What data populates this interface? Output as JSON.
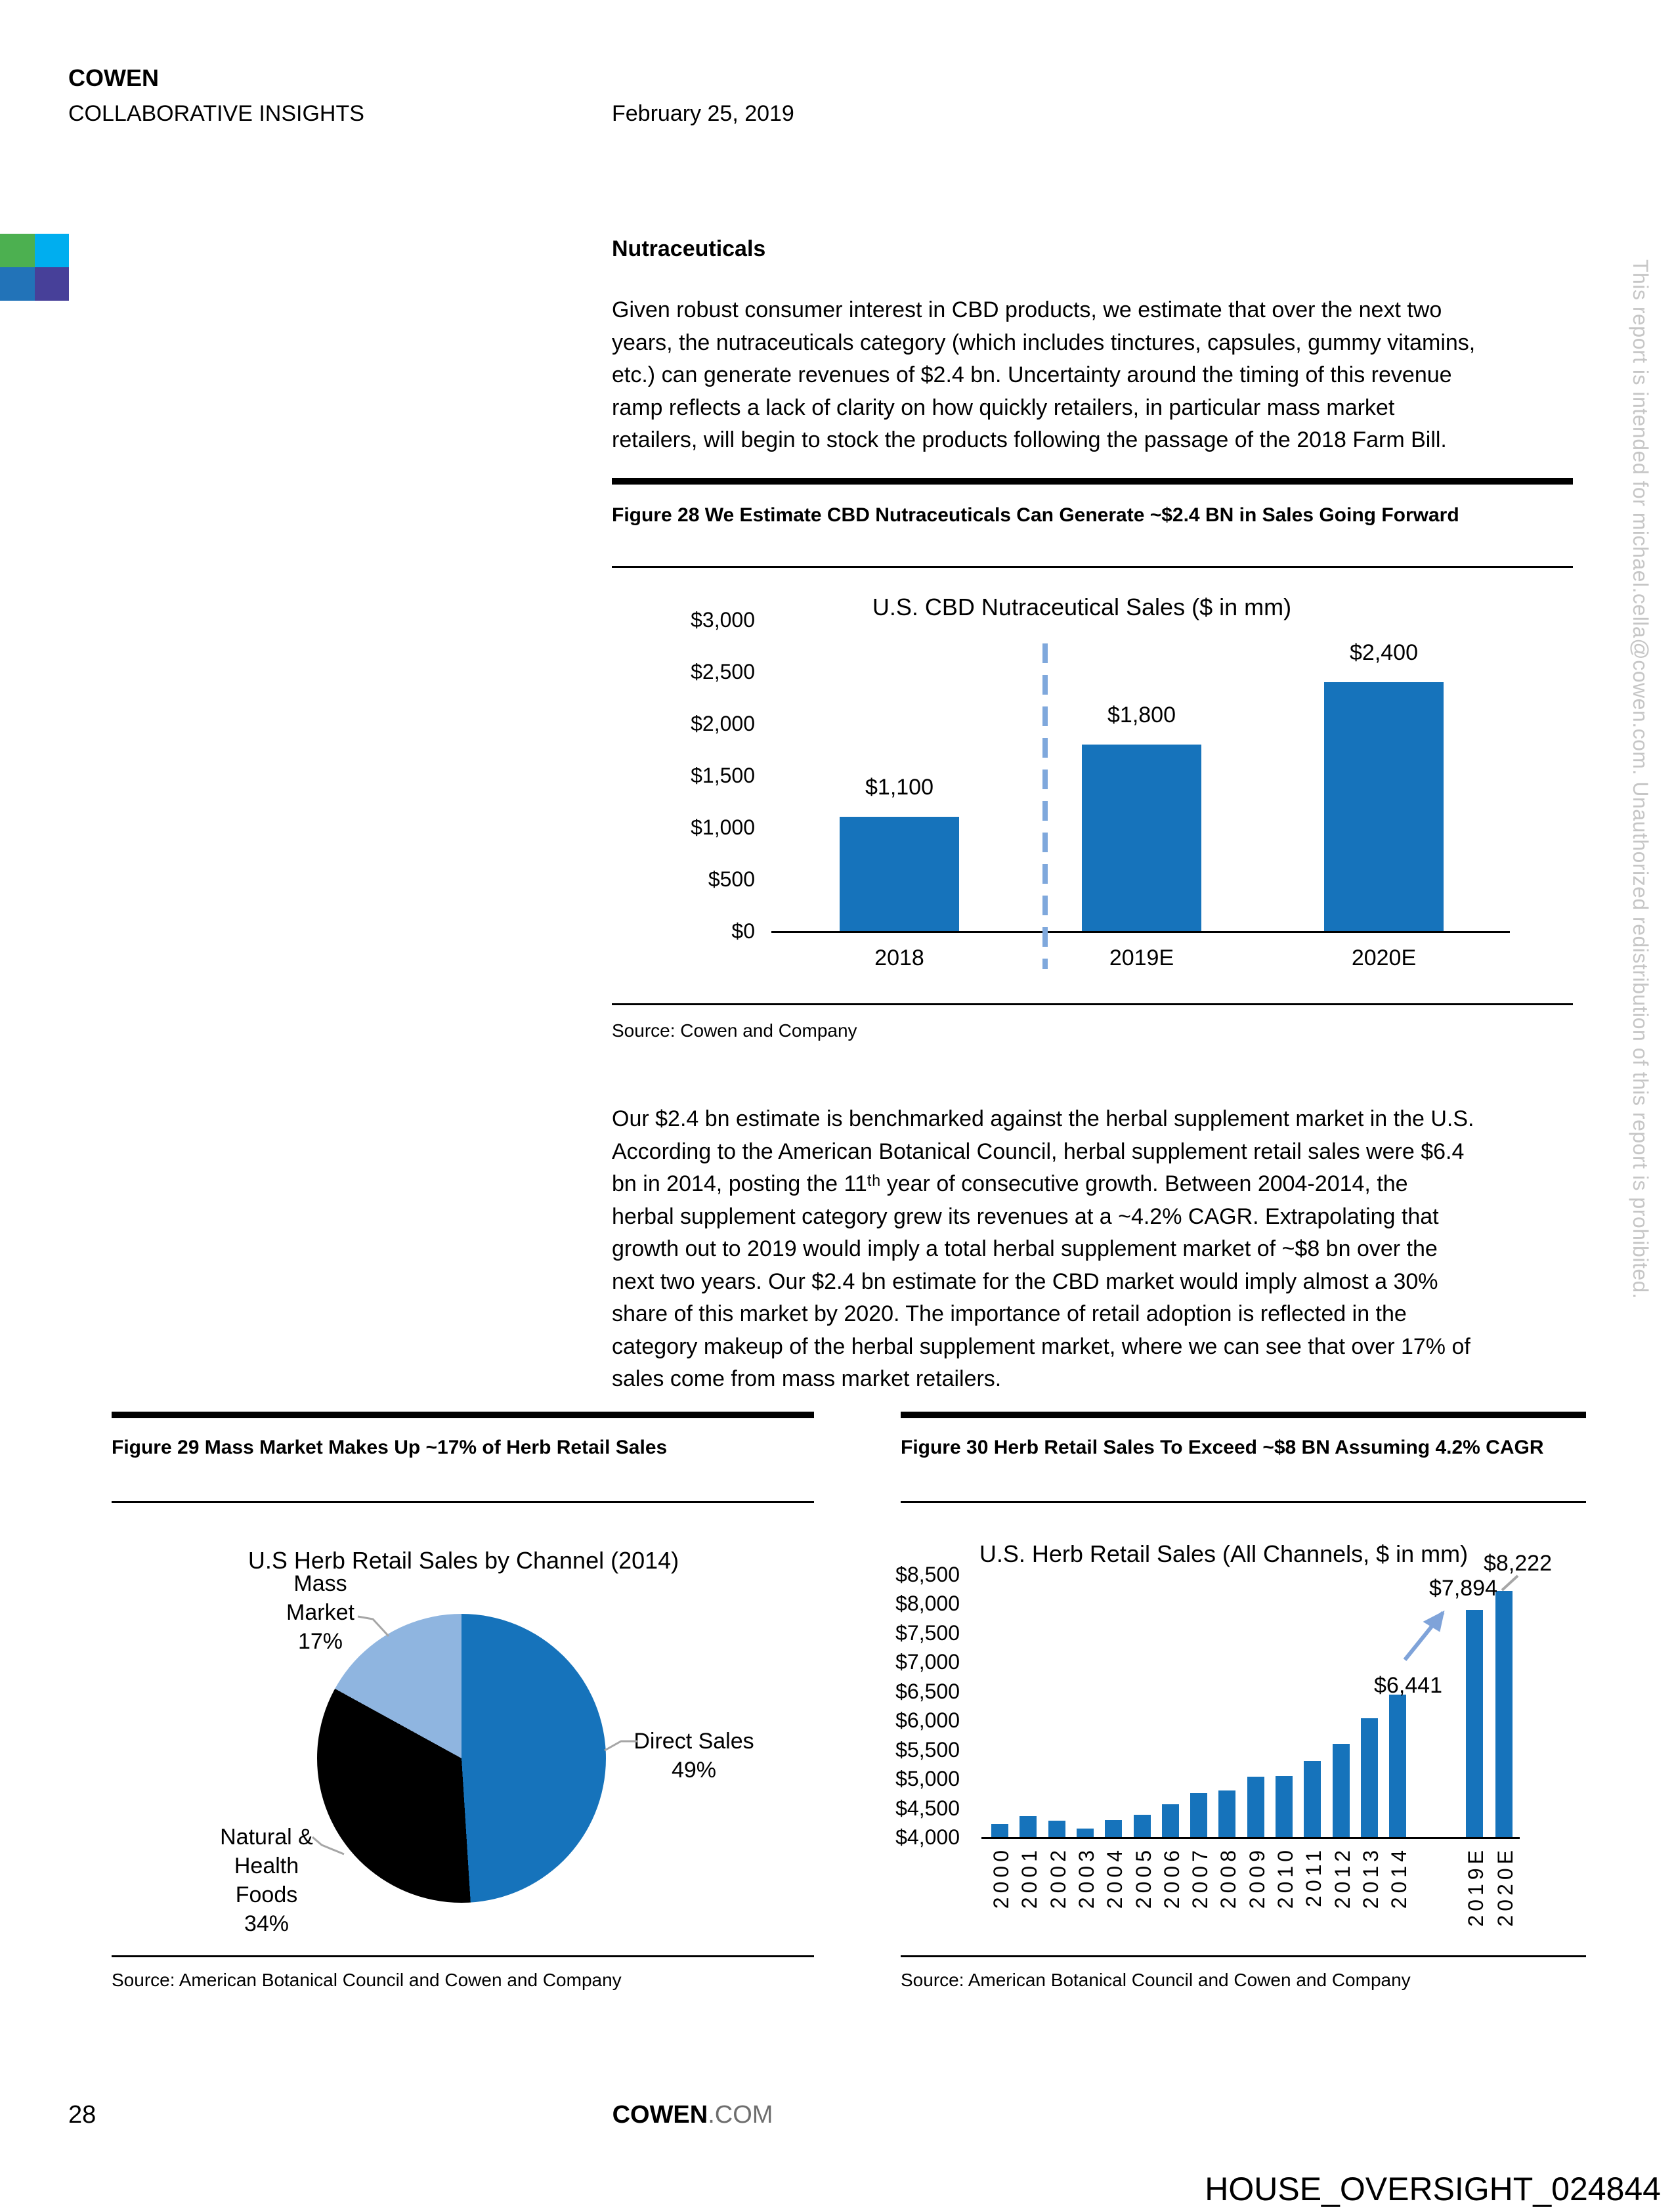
{
  "header": {
    "brand": "COWEN",
    "subbrand": "COLLABORATIVE INSIGHTS",
    "date": "February 25, 2019"
  },
  "logo_colors": {
    "green": "#4CB050",
    "cyan": "#00AEEF",
    "blue": "#2273B8",
    "purple": "#474099"
  },
  "section_title": "Nutraceuticals",
  "para1_lines": [
    "Given robust consumer interest in CBD products, we estimate that over the next two",
    "years, the nutraceuticals category (which includes tinctures, capsules, gummy vitamins,",
    "etc.) can generate revenues of $2.4 bn. Uncertainty around the timing of this revenue",
    "ramp reflects a lack of clarity on how quickly retailers, in particular mass market",
    "retailers, will begin to stock the products following the passage of the 2018 Farm Bill."
  ],
  "figure28": {
    "caption": "Figure 28 We Estimate CBD Nutraceuticals Can Generate ~$2.4 BN in Sales Going Forward",
    "source": "Source: Cowen and Company"
  },
  "para2_lines": [
    "Our $2.4 bn estimate is benchmarked against the herbal supplement market in the U.S.",
    "According to the American Botanical Council, herbal supplement retail sales were $6.4",
    "bn in 2014, posting the 11ᵗʰ year of consecutive growth. Between 2004-2014, the",
    "herbal supplement category grew its revenues at a ~4.2% CAGR. Extrapolating that",
    "growth out to 2019 would imply a total herbal supplement market of ~$8 bn over the",
    "next two years. Our $2.4 bn estimate for the CBD market would imply almost a 30%",
    "share of this market by 2020. The importance of retail adoption is reflected in the",
    "category makeup of the herbal supplement market, where we can see that over 17% of",
    "sales come from mass market retailers."
  ],
  "figure29": {
    "caption": "Figure 29 Mass Market Makes Up ~17% of Herb Retail Sales",
    "source": "Source: American Botanical Council and Cowen and Company"
  },
  "figure30": {
    "caption": "Figure 30 Herb Retail Sales To Exceed ~$8 BN Assuming 4.2% CAGR",
    "source": "Source: American Botanical Council and Cowen and Company"
  },
  "chart_data": [
    {
      "type": "bar",
      "title": "U.S. CBD Nutraceutical Sales ($ in mm)",
      "categories": [
        "2018",
        "2019E",
        "2020E"
      ],
      "values": [
        1100,
        1800,
        2400
      ],
      "data_labels": [
        "$1,100",
        "$1,800",
        "$2,400"
      ],
      "ylim": [
        0,
        3000
      ],
      "ytick_labels": [
        "$3,000",
        "$2,500",
        "$2,000",
        "$1,500",
        "$1,000",
        "$500",
        "$0"
      ],
      "bar_color": "#1673BB",
      "divider_note": "dashed vertical line separates actual 2018 from estimates",
      "divider_color": "#7FA8DC"
    },
    {
      "type": "pie",
      "title": "U.S Herb Retail Sales by Channel (2014)",
      "slices": [
        {
          "label": "Direct Sales",
          "pct": 49,
          "color": "#1673BB",
          "label_lines": [
            "Direct Sales",
            "49%"
          ]
        },
        {
          "label": "Natural & Health Foods",
          "pct": 34,
          "color": "#000000",
          "label_lines": [
            "Natural &",
            "Health",
            "Foods",
            "34%"
          ]
        },
        {
          "label": "Mass Market",
          "pct": 17,
          "color": "#8FB5E0",
          "label_lines": [
            "Mass",
            "Market",
            "17%"
          ]
        }
      ],
      "legend_position": "outside labels with leader lines"
    },
    {
      "type": "bar",
      "title": "U.S. Herb Retail Sales (All Channels, $ in mm)",
      "categories": [
        "2000",
        "2001",
        "2002",
        "2003",
        "2004",
        "2005",
        "2006",
        "2007",
        "2008",
        "2009",
        "2010",
        "2011",
        "2012",
        "2013",
        "2014",
        "2019E",
        "2020E"
      ],
      "values": [
        4225,
        4361,
        4276,
        4146,
        4288,
        4378,
        4558,
        4756,
        4800,
        5037,
        5049,
        5302,
        5593,
        6033,
        6441,
        7894,
        8222
      ],
      "ylim": [
        4000,
        8500
      ],
      "ytick_labels": [
        "$8,500",
        "$8,000",
        "$7,500",
        "$7,000",
        "$6,500",
        "$6,000",
        "$5,500",
        "$5,000",
        "$4,500",
        "$4,000"
      ],
      "annotations": [
        {
          "text": "$6,441",
          "category": "2014"
        },
        {
          "text": "$7,894",
          "category": "2019E"
        },
        {
          "text": "$8,222",
          "category": "2020E"
        }
      ],
      "bar_color": "#1673BB",
      "arrow_color": "#7FA3D9"
    }
  ],
  "footer": {
    "page_number": "28",
    "site_bold": "COWEN",
    "site_rest": ".COM"
  },
  "watermark": "HOUSE_OVERSIGHT_024844",
  "sidebar_disclaimer": "This report is intended for michael.cella@cowen.com. Unauthorized redistribution of this report is prohibited."
}
